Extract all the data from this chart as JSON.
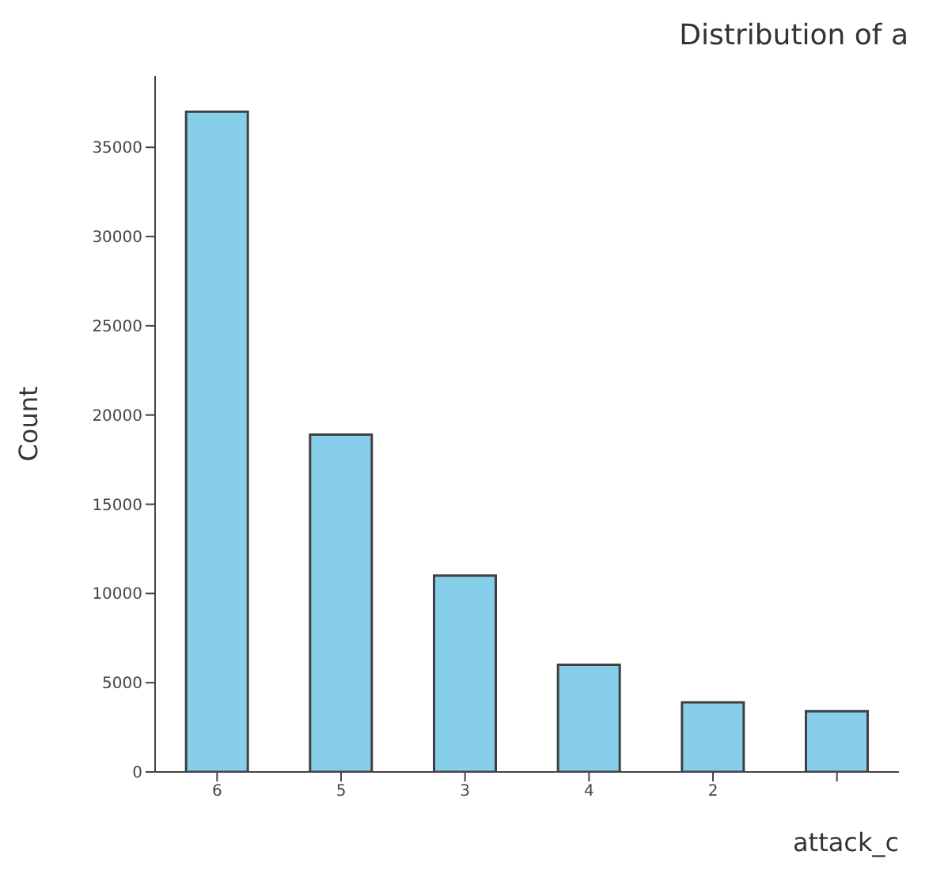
{
  "chart_data": {
    "type": "bar",
    "title": "Distribution of a",
    "xlabel": "attack_c",
    "ylabel": "Count",
    "categories": [
      "6",
      "5",
      "3",
      "4",
      "2",
      null
    ],
    "values": [
      37000,
      18900,
      11000,
      6000,
      3900,
      3400
    ],
    "color": "#87ceeb",
    "ylim": [
      0,
      39000
    ],
    "yticks": [
      0,
      5000,
      10000,
      15000,
      20000,
      25000,
      30000,
      35000
    ],
    "grid": false
  }
}
